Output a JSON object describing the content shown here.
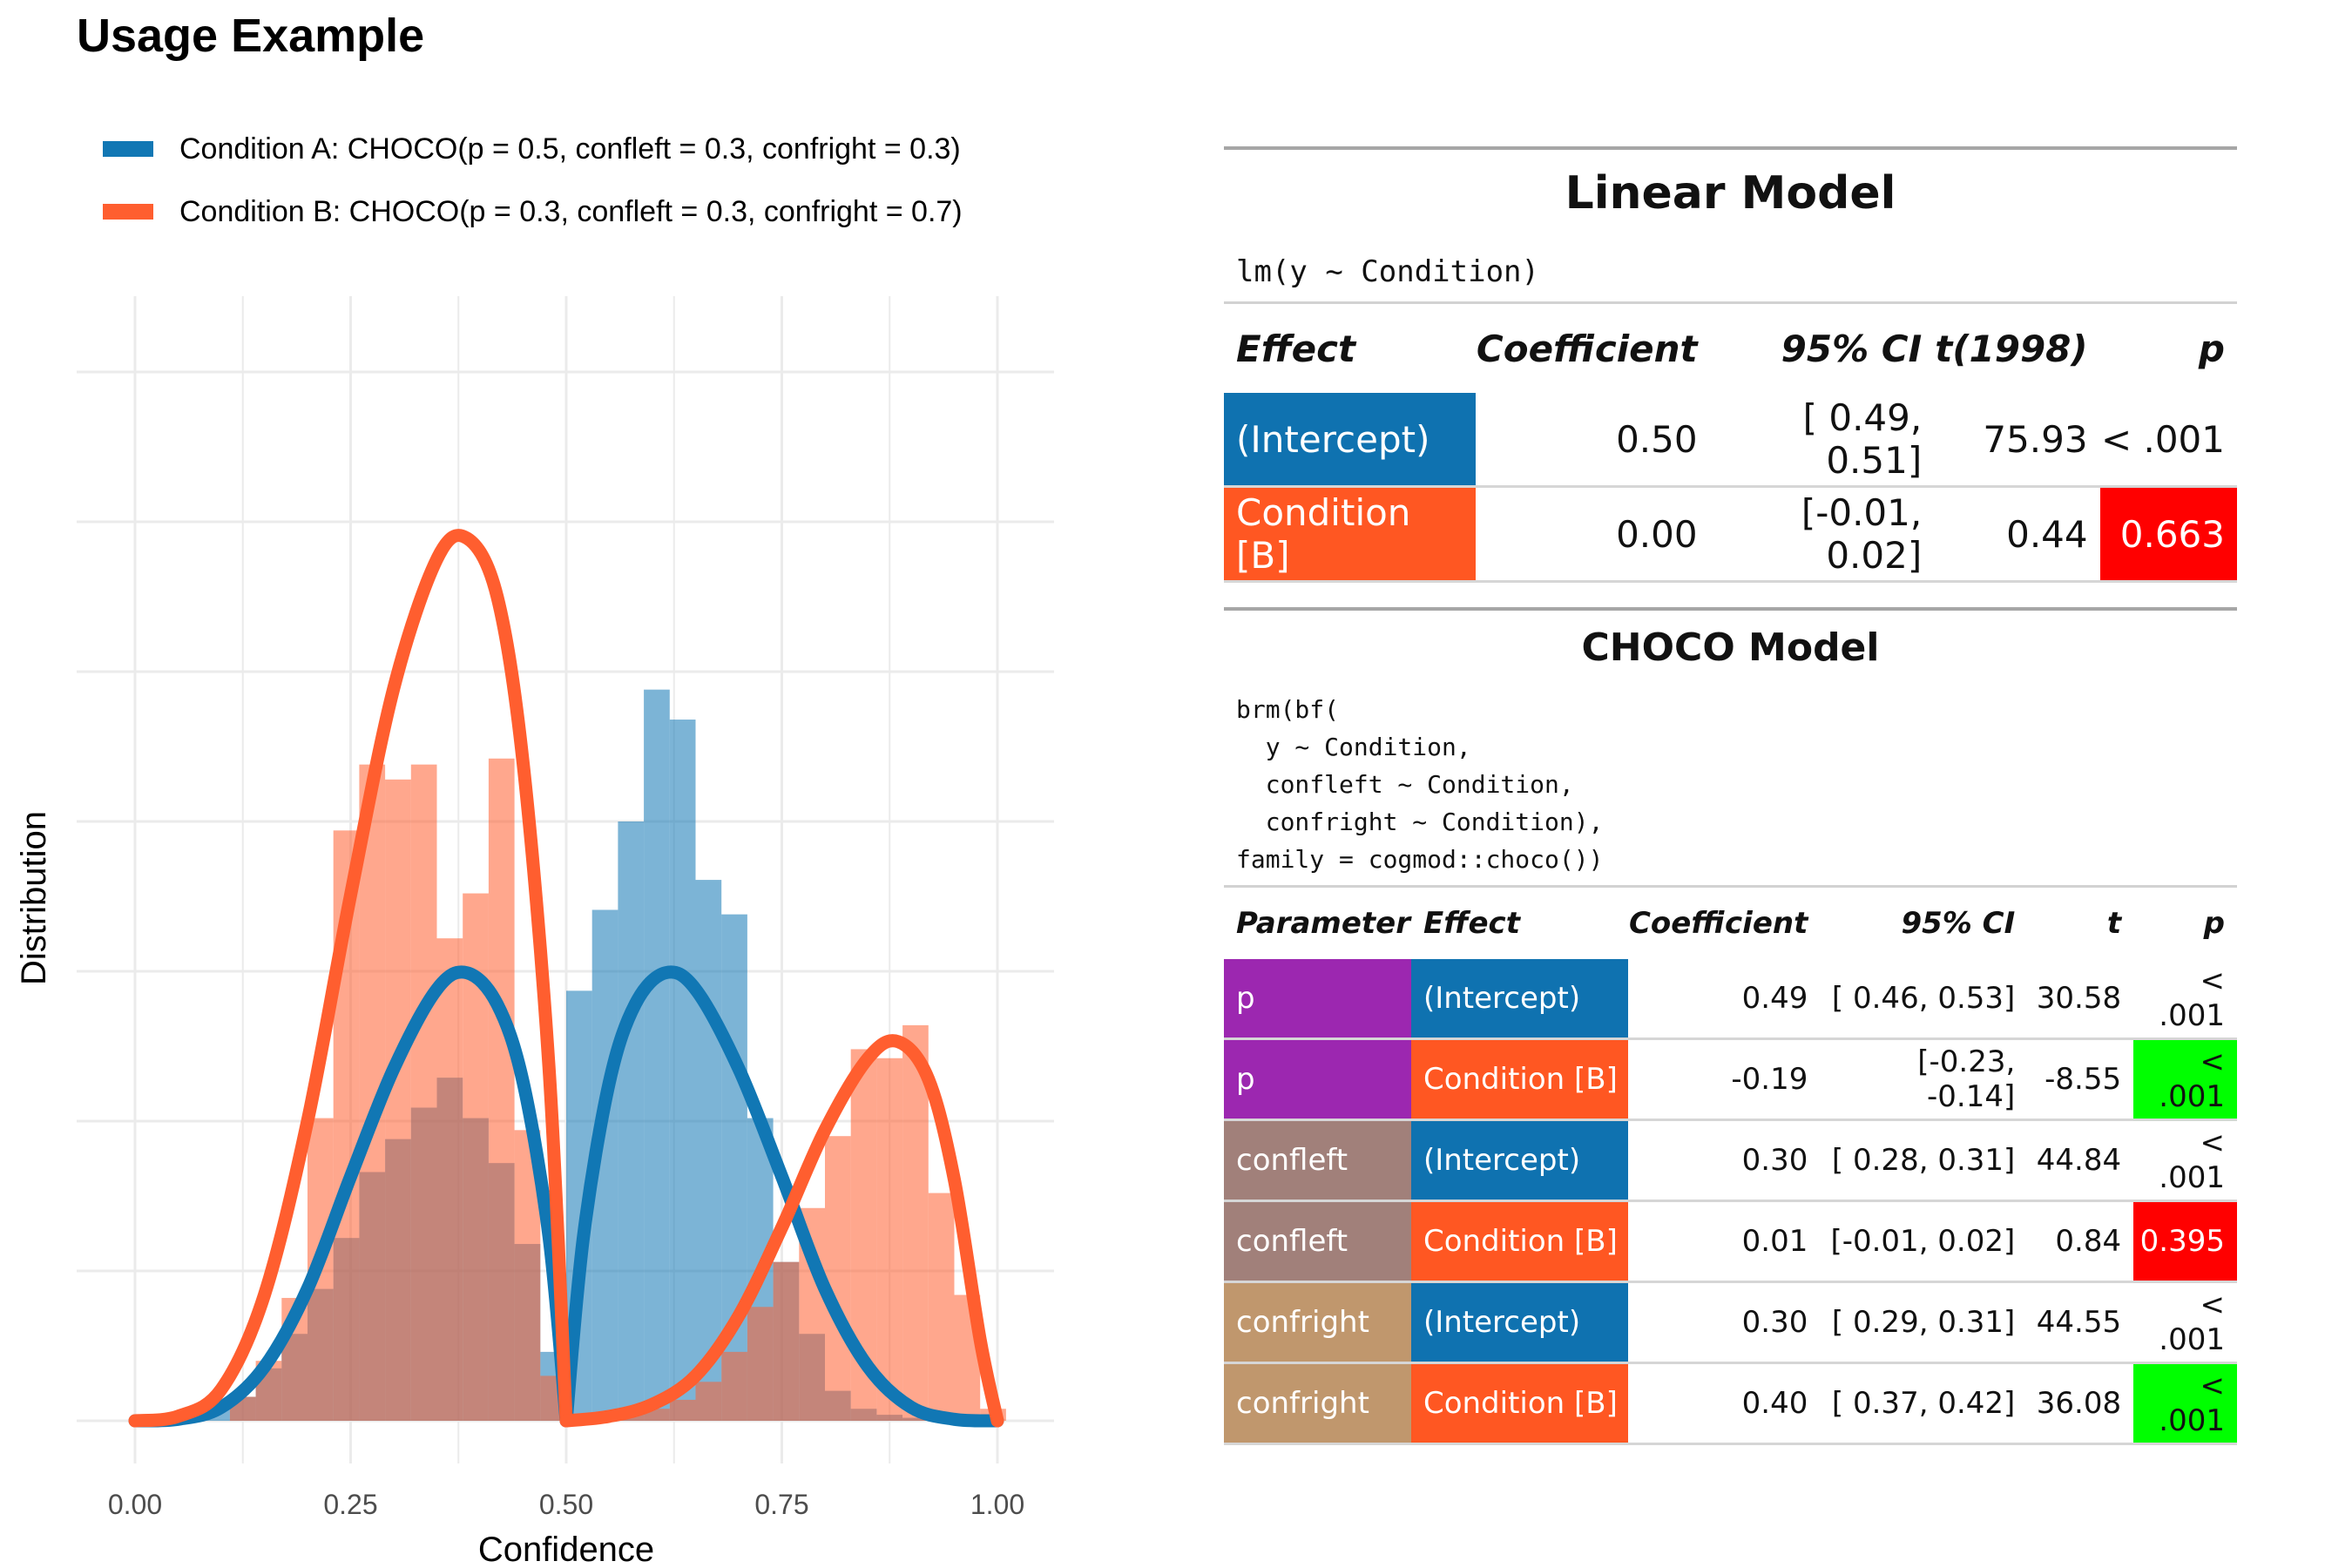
{
  "title": "Usage Example",
  "legend": [
    {
      "label": "Condition A: CHOCO(p = 0.5, confleft = 0.3, confright = 0.3)",
      "color": "#1177B4"
    },
    {
      "label": "Condition B: CHOCO(p = 0.3, confleft = 0.3, confright = 0.7)",
      "color": "#FF5E2F"
    }
  ],
  "chart_data": {
    "type": "histogram",
    "xlabel": "Confidence",
    "ylabel": "Distribution",
    "xlim": [
      0,
      1
    ],
    "x_ticks": [
      "0.00",
      "0.25",
      "0.50",
      "0.75",
      "1.00"
    ],
    "x_tick_values": [
      0,
      0.25,
      0.5,
      0.75,
      1.0
    ],
    "grid": true,
    "bin_width": 0.03,
    "series": [
      {
        "name": "Condition A",
        "color": "#1177B4",
        "histogram": [
          {
            "x": 0.095,
            "y": 0.1
          },
          {
            "x": 0.125,
            "y": 0.16
          },
          {
            "x": 0.155,
            "y": 0.35
          },
          {
            "x": 0.185,
            "y": 0.58
          },
          {
            "x": 0.215,
            "y": 0.88
          },
          {
            "x": 0.245,
            "y": 1.22
          },
          {
            "x": 0.275,
            "y": 1.66
          },
          {
            "x": 0.305,
            "y": 1.88
          },
          {
            "x": 0.335,
            "y": 2.09
          },
          {
            "x": 0.365,
            "y": 2.29
          },
          {
            "x": 0.395,
            "y": 2.02
          },
          {
            "x": 0.425,
            "y": 1.72
          },
          {
            "x": 0.455,
            "y": 1.18
          },
          {
            "x": 0.485,
            "y": 0.46
          },
          {
            "x": 0.515,
            "y": 2.87
          },
          {
            "x": 0.545,
            "y": 3.41
          },
          {
            "x": 0.575,
            "y": 4.0
          },
          {
            "x": 0.605,
            "y": 4.88
          },
          {
            "x": 0.635,
            "y": 4.68
          },
          {
            "x": 0.665,
            "y": 3.61
          },
          {
            "x": 0.695,
            "y": 3.38
          },
          {
            "x": 0.725,
            "y": 2.02
          },
          {
            "x": 0.755,
            "y": 1.06
          },
          {
            "x": 0.785,
            "y": 0.58
          },
          {
            "x": 0.815,
            "y": 0.2
          },
          {
            "x": 0.845,
            "y": 0.08
          },
          {
            "x": 0.875,
            "y": 0.04
          },
          {
            "x": 0.905,
            "y": 0.02
          }
        ],
        "density": [
          {
            "x": 0.0,
            "y": 0.0
          },
          {
            "x": 0.05,
            "y": 0.01
          },
          {
            "x": 0.1,
            "y": 0.09
          },
          {
            "x": 0.15,
            "y": 0.36
          },
          {
            "x": 0.2,
            "y": 0.88
          },
          {
            "x": 0.25,
            "y": 1.63
          },
          {
            "x": 0.3,
            "y": 2.35
          },
          {
            "x": 0.35,
            "y": 2.88
          },
          {
            "x": 0.385,
            "y": 2.99
          },
          {
            "x": 0.42,
            "y": 2.78
          },
          {
            "x": 0.45,
            "y": 2.26
          },
          {
            "x": 0.48,
            "y": 1.23
          },
          {
            "x": 0.5,
            "y": 0.0
          },
          {
            "x": 0.52,
            "y": 1.23
          },
          {
            "x": 0.55,
            "y": 2.26
          },
          {
            "x": 0.58,
            "y": 2.78
          },
          {
            "x": 0.615,
            "y": 2.99
          },
          {
            "x": 0.65,
            "y": 2.88
          },
          {
            "x": 0.7,
            "y": 2.35
          },
          {
            "x": 0.75,
            "y": 1.63
          },
          {
            "x": 0.8,
            "y": 0.88
          },
          {
            "x": 0.85,
            "y": 0.36
          },
          {
            "x": 0.9,
            "y": 0.09
          },
          {
            "x": 0.95,
            "y": 0.01
          },
          {
            "x": 1.0,
            "y": 0.0
          }
        ]
      },
      {
        "name": "Condition B",
        "color": "#FF5E2F",
        "histogram": [
          {
            "x": 0.125,
            "y": 0.16
          },
          {
            "x": 0.155,
            "y": 0.4
          },
          {
            "x": 0.185,
            "y": 0.82
          },
          {
            "x": 0.215,
            "y": 2.02
          },
          {
            "x": 0.245,
            "y": 3.94
          },
          {
            "x": 0.275,
            "y": 4.38
          },
          {
            "x": 0.305,
            "y": 4.28
          },
          {
            "x": 0.335,
            "y": 4.38
          },
          {
            "x": 0.365,
            "y": 3.22
          },
          {
            "x": 0.395,
            "y": 3.52
          },
          {
            "x": 0.425,
            "y": 4.42
          },
          {
            "x": 0.455,
            "y": 1.94
          },
          {
            "x": 0.485,
            "y": 0.3
          },
          {
            "x": 0.575,
            "y": 0.04
          },
          {
            "x": 0.605,
            "y": 0.08
          },
          {
            "x": 0.635,
            "y": 0.14
          },
          {
            "x": 0.665,
            "y": 0.26
          },
          {
            "x": 0.695,
            "y": 0.46
          },
          {
            "x": 0.725,
            "y": 0.76
          },
          {
            "x": 0.755,
            "y": 1.06
          },
          {
            "x": 0.785,
            "y": 1.42
          },
          {
            "x": 0.815,
            "y": 1.9
          },
          {
            "x": 0.845,
            "y": 2.48
          },
          {
            "x": 0.875,
            "y": 2.42
          },
          {
            "x": 0.905,
            "y": 2.64
          },
          {
            "x": 0.935,
            "y": 1.52
          },
          {
            "x": 0.965,
            "y": 0.84
          },
          {
            "x": 0.995,
            "y": 0.08
          }
        ],
        "density": [
          {
            "x": 0.0,
            "y": 0.0
          },
          {
            "x": 0.05,
            "y": 0.03
          },
          {
            "x": 0.1,
            "y": 0.21
          },
          {
            "x": 0.15,
            "y": 0.84
          },
          {
            "x": 0.2,
            "y": 2.0
          },
          {
            "x": 0.25,
            "y": 3.51
          },
          {
            "x": 0.3,
            "y": 4.89
          },
          {
            "x": 0.35,
            "y": 5.75
          },
          {
            "x": 0.385,
            "y": 5.89
          },
          {
            "x": 0.42,
            "y": 5.5
          },
          {
            "x": 0.45,
            "y": 4.39
          },
          {
            "x": 0.48,
            "y": 2.36
          },
          {
            "x": 0.5,
            "y": 0.0
          },
          {
            "x": 0.55,
            "y": 0.03
          },
          {
            "x": 0.6,
            "y": 0.11
          },
          {
            "x": 0.65,
            "y": 0.3
          },
          {
            "x": 0.7,
            "y": 0.7
          },
          {
            "x": 0.75,
            "y": 1.29
          },
          {
            "x": 0.8,
            "y": 1.94
          },
          {
            "x": 0.85,
            "y": 2.42
          },
          {
            "x": 0.885,
            "y": 2.53
          },
          {
            "x": 0.92,
            "y": 2.28
          },
          {
            "x": 0.95,
            "y": 1.61
          },
          {
            "x": 0.98,
            "y": 0.54
          },
          {
            "x": 1.0,
            "y": 0.0
          }
        ]
      }
    ]
  },
  "linear_model": {
    "title": "Linear Model",
    "formula": "lm(y ~ Condition)",
    "headers": [
      "Effect",
      "Coefficient",
      "95% CI",
      "t(1998)",
      "p"
    ],
    "rows": [
      {
        "effect": "(Intercept)",
        "effect_color": "#0F72B0",
        "coef": "0.50",
        "ci": "[ 0.49, 0.51]",
        "t": "75.93",
        "p": "< .001",
        "p_color": ""
      },
      {
        "effect": "Condition [B]",
        "effect_color": "#FF5722",
        "coef": "0.00",
        "ci": "[-0.01, 0.02]",
        "t": "0.44",
        "p": "0.663",
        "p_color": "#FF0000"
      }
    ]
  },
  "choco_model": {
    "title": "CHOCO Model",
    "formula": "brm(bf(\n  y ~ Condition,\n  confleft ~ Condition,\n  confright ~ Condition),\nfamily = cogmod::choco())",
    "headers": [
      "Parameter",
      "Effect",
      "Coefficient",
      "95% CI",
      "t",
      "p"
    ],
    "rows": [
      {
        "param": "p",
        "param_color": "#9C27B0",
        "effect": "(Intercept)",
        "effect_color": "#0F72B0",
        "coef": "0.49",
        "ci": "[ 0.46, 0.53]",
        "t": "30.58",
        "p": "< .001",
        "p_color": ""
      },
      {
        "param": "p",
        "param_color": "#9C27B0",
        "effect": "Condition [B]",
        "effect_color": "#FF5722",
        "coef": "-0.19",
        "ci": "[-0.23, -0.14]",
        "t": "-8.55",
        "p": "< .001",
        "p_color": "#00FF00"
      },
      {
        "param": "confleft",
        "param_color": "#A1807A",
        "effect": "(Intercept)",
        "effect_color": "#0F72B0",
        "coef": "0.30",
        "ci": "[ 0.28, 0.31]",
        "t": "44.84",
        "p": "< .001",
        "p_color": ""
      },
      {
        "param": "confleft",
        "param_color": "#A1807A",
        "effect": "Condition [B]",
        "effect_color": "#FF5722",
        "coef": "0.01",
        "ci": "[-0.01, 0.02]",
        "t": "0.84",
        "p": "0.395",
        "p_color": "#FF0000"
      },
      {
        "param": "confright",
        "param_color": "#C0976D",
        "effect": "(Intercept)",
        "effect_color": "#0F72B0",
        "coef": "0.30",
        "ci": "[ 0.29, 0.31]",
        "t": "44.55",
        "p": "< .001",
        "p_color": ""
      },
      {
        "param": "confright",
        "param_color": "#C0976D",
        "effect": "Condition [B]",
        "effect_color": "#FF5722",
        "coef": "0.40",
        "ci": "[ 0.37, 0.42]",
        "t": "36.08",
        "p": "< .001",
        "p_color": "#00FF00"
      }
    ]
  }
}
